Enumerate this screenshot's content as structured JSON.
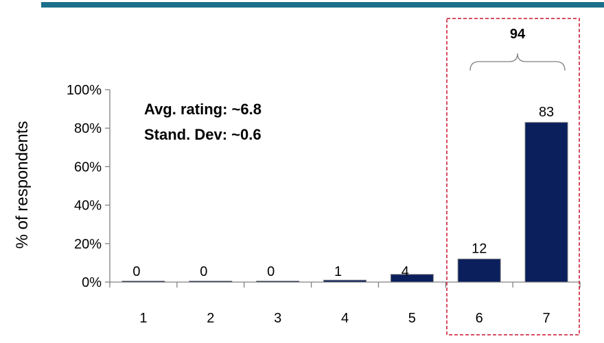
{
  "colors": {
    "header_rule": "#1a6f8a",
    "bar_fill": "#0a1f5c",
    "axis": "#808080",
    "highlight_box": "#c8102e"
  },
  "annotations": {
    "avg_rating": "Avg. rating: ~6.8",
    "std_dev": "Stand. Dev: ~0.6"
  },
  "chart_data": {
    "type": "bar",
    "categories": [
      "1",
      "2",
      "3",
      "4",
      "5",
      "6",
      "7"
    ],
    "values": [
      0,
      0,
      0,
      1,
      4,
      12,
      83
    ],
    "data_labels": [
      "0",
      "0",
      "0",
      "1",
      "4",
      "12",
      "83"
    ],
    "ylabel": "% of respondents",
    "xlabel": "",
    "ylim": [
      0,
      100
    ],
    "y_ticks": [
      0,
      20,
      40,
      60,
      80,
      100
    ],
    "y_tick_labels": [
      "0%",
      "20%",
      "40%",
      "60%",
      "80%",
      "100%"
    ],
    "grid": false,
    "highlight": {
      "categories": [
        "6",
        "7"
      ],
      "label": "94"
    }
  }
}
